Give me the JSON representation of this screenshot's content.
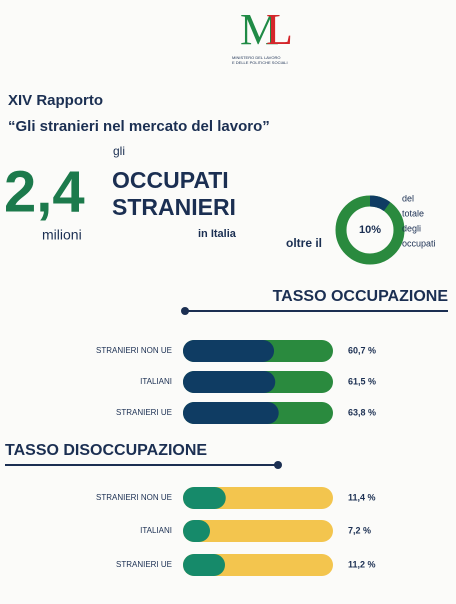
{
  "logo": {
    "mark_m": "M",
    "mark_l": "L",
    "line1": "MINISTERO DEL LAVORO",
    "line2": "E DELLE POLITICHE SOCIALI"
  },
  "header": {
    "title": "XIV Rapporto",
    "subtitle": "“Gli stranieri nel mercato del lavoro”"
  },
  "highlight": {
    "number": "2,4",
    "unit": "milioni",
    "pre": "gli",
    "line1": "OCCUPATI",
    "line2": "STRANIERI",
    "place": "in Italia"
  },
  "chart_data": [
    {
      "type": "donut",
      "pre_label": "oltre il",
      "values": [
        10
      ],
      "value_labels": [
        "10%"
      ],
      "max": 100,
      "label_lines": [
        "del",
        "totale",
        "degli",
        "occupati"
      ],
      "colors": [
        "#0f3c63",
        "#2a8a3e"
      ]
    },
    {
      "type": "hbar",
      "title": "TASSO OCCUPAZIONE",
      "categories": [
        "STRANIERI NON UE",
        "ITALIANI",
        "STRANIERI UE"
      ],
      "values": [
        60.7,
        61.5,
        63.8
      ],
      "value_labels": [
        "60,7 %",
        "61,5 %",
        "63,8 %"
      ],
      "xlim": [
        0,
        100
      ],
      "color": "#0f3c63",
      "track_color": "#2a8a3e"
    },
    {
      "type": "hbar",
      "title": "TASSO DISOCCUPAZIONE",
      "categories": [
        "STRANIERI NON UE",
        "ITALIANI",
        "STRANIERI UE"
      ],
      "values": [
        11.4,
        7.2,
        11.2
      ],
      "value_labels": [
        "11,4 %",
        "7,2 %",
        "11,2 %"
      ],
      "xlim": [
        0,
        40
      ],
      "color": "#168a6a",
      "track_color": "#f3c54e"
    }
  ]
}
